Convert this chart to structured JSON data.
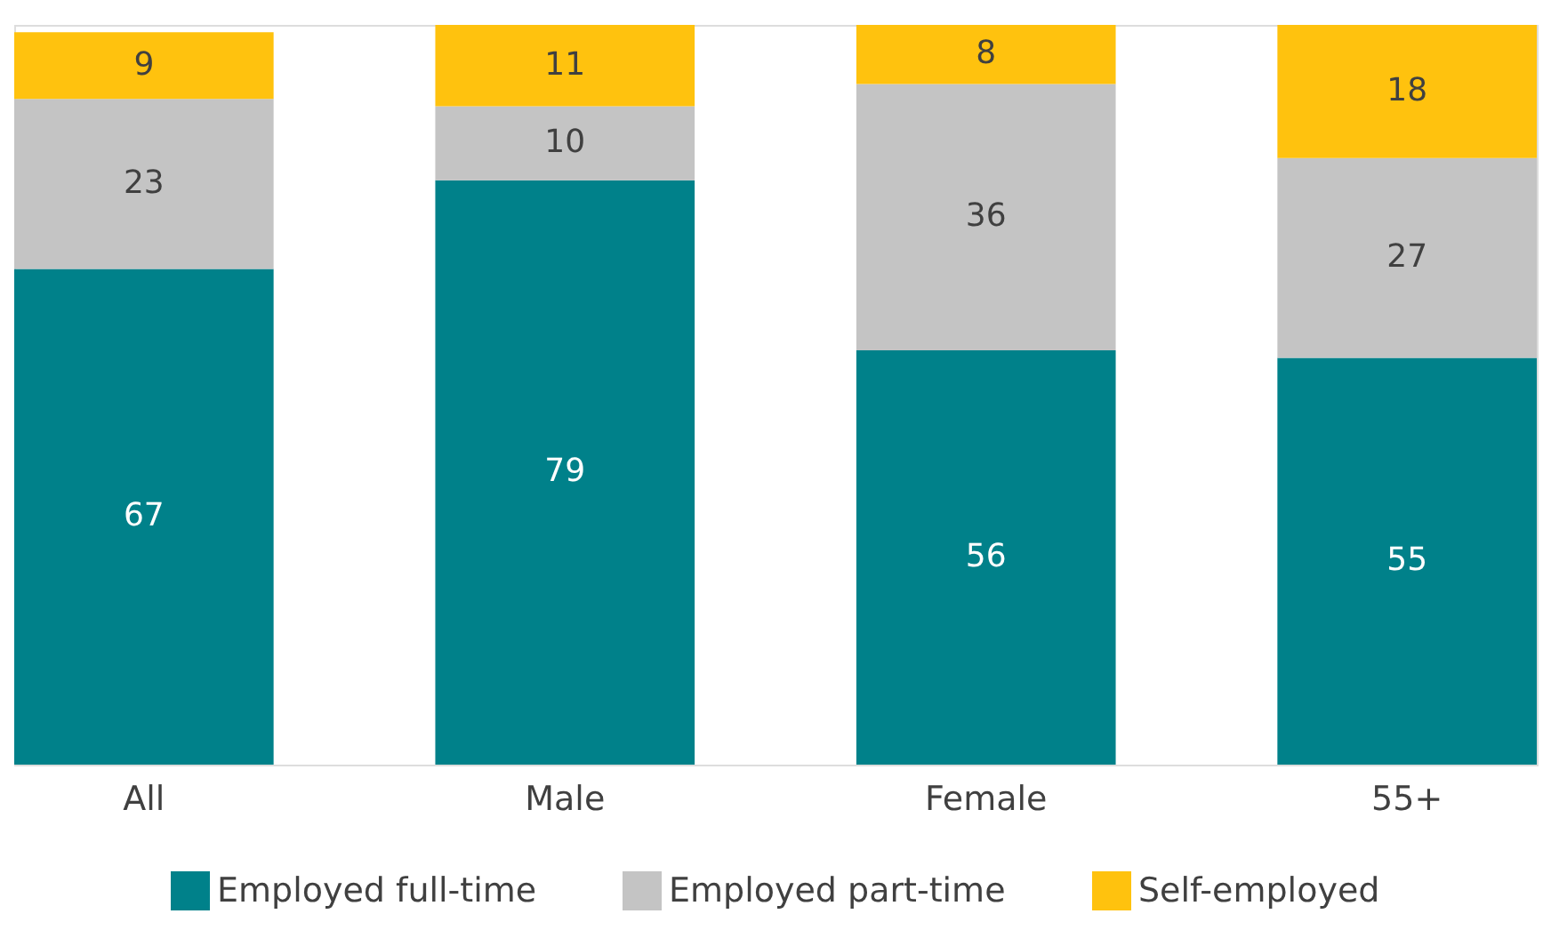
{
  "chart_data": {
    "type": "bar",
    "stacked": true,
    "data_labels": true,
    "legend": "bottom",
    "tick_labels": "x",
    "categories": [
      "All",
      "Male",
      "Female",
      "55+"
    ],
    "series": [
      {
        "name": "Employed full-time",
        "color": "#00818a",
        "values": [
          67,
          79,
          56,
          55
        ]
      },
      {
        "name": "Employed part-time",
        "color": "#c4c4c4",
        "values": [
          23,
          10,
          36,
          27
        ]
      },
      {
        "name": "Self-employed",
        "color": "#ffc20e",
        "values": [
          9,
          11,
          8,
          18
        ]
      }
    ]
  }
}
